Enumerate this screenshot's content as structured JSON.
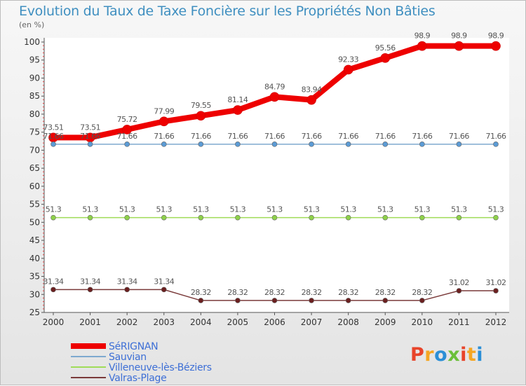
{
  "header": {
    "title": "Evolution du Taux de Taxe Foncière sur les Propriétés Non Bâties",
    "unit": "(en %)"
  },
  "logo": {
    "text": "Proxiti",
    "colors": [
      "#e8442a",
      "#f5a623",
      "#2b8fd6",
      "#6bbf3a",
      "#e8442a",
      "#f5a623",
      "#2b8fd6"
    ]
  },
  "chart_data": {
    "type": "line",
    "title": "Evolution du Taux de Taxe Foncière sur les Propriétés Non Bâties",
    "ylabel": "(en %)",
    "xlabel": "",
    "ylim": [
      25,
      100
    ],
    "yticks": [
      "25",
      "30",
      "35",
      "40",
      "45",
      "50",
      "55",
      "60",
      "65",
      "70",
      "75",
      "80",
      "85",
      "90",
      "95",
      "100"
    ],
    "categories": [
      "2000",
      "2001",
      "2002",
      "2003",
      "2004",
      "2005",
      "2006",
      "2007",
      "2008",
      "2009",
      "2010",
      "2011",
      "2012"
    ],
    "series": [
      {
        "name": "SéRIGNAN",
        "color": "#ee0000",
        "labels": [
          "73.51",
          "73.51",
          "75.72",
          "77.99",
          "79.55",
          "81.14",
          "84.79",
          "83.94",
          "92.33",
          "95.56",
          "98.9",
          "98.9",
          "98.9"
        ],
        "values": [
          73.51,
          73.51,
          75.72,
          77.99,
          79.55,
          81.14,
          84.79,
          83.94,
          92.33,
          95.56,
          98.9,
          98.9,
          98.9
        ]
      },
      {
        "name": "Sauvian",
        "color": "#7ea9cf",
        "labels": [
          "71.66",
          "71.66",
          "71.66",
          "71.66",
          "71.66",
          "71.66",
          "71.66",
          "71.66",
          "71.66",
          "71.66",
          "71.66",
          "71.66",
          "71.66"
        ],
        "values": [
          71.66,
          71.66,
          71.66,
          71.66,
          71.66,
          71.66,
          71.66,
          71.66,
          71.66,
          71.66,
          71.66,
          71.66,
          71.66
        ]
      },
      {
        "name": "Villeneuve-lès-Béziers",
        "color": "#9fdc58",
        "labels": [
          "51.3",
          "51.3",
          "51.3",
          "51.3",
          "51.3",
          "51.3",
          "51.3",
          "51.3",
          "51.3",
          "51.3",
          "51.3",
          "51.3",
          "51.3"
        ],
        "values": [
          51.3,
          51.3,
          51.3,
          51.3,
          51.3,
          51.3,
          51.3,
          51.3,
          51.3,
          51.3,
          51.3,
          51.3,
          51.3
        ]
      },
      {
        "name": "Valras-Plage",
        "color": "#7a3a3a",
        "labels": [
          "31.34",
          "31.34",
          "31.34",
          "31.34",
          "28.32",
          "28.32",
          "28.32",
          "28.32",
          "28.32",
          "28.32",
          "28.32",
          "31.02",
          "31.02"
        ],
        "values": [
          31.34,
          31.34,
          31.34,
          31.34,
          28.32,
          28.32,
          28.32,
          28.32,
          28.32,
          28.32,
          28.32,
          31.02,
          31.02
        ]
      }
    ],
    "grid": false,
    "legend": "bottom-left"
  }
}
